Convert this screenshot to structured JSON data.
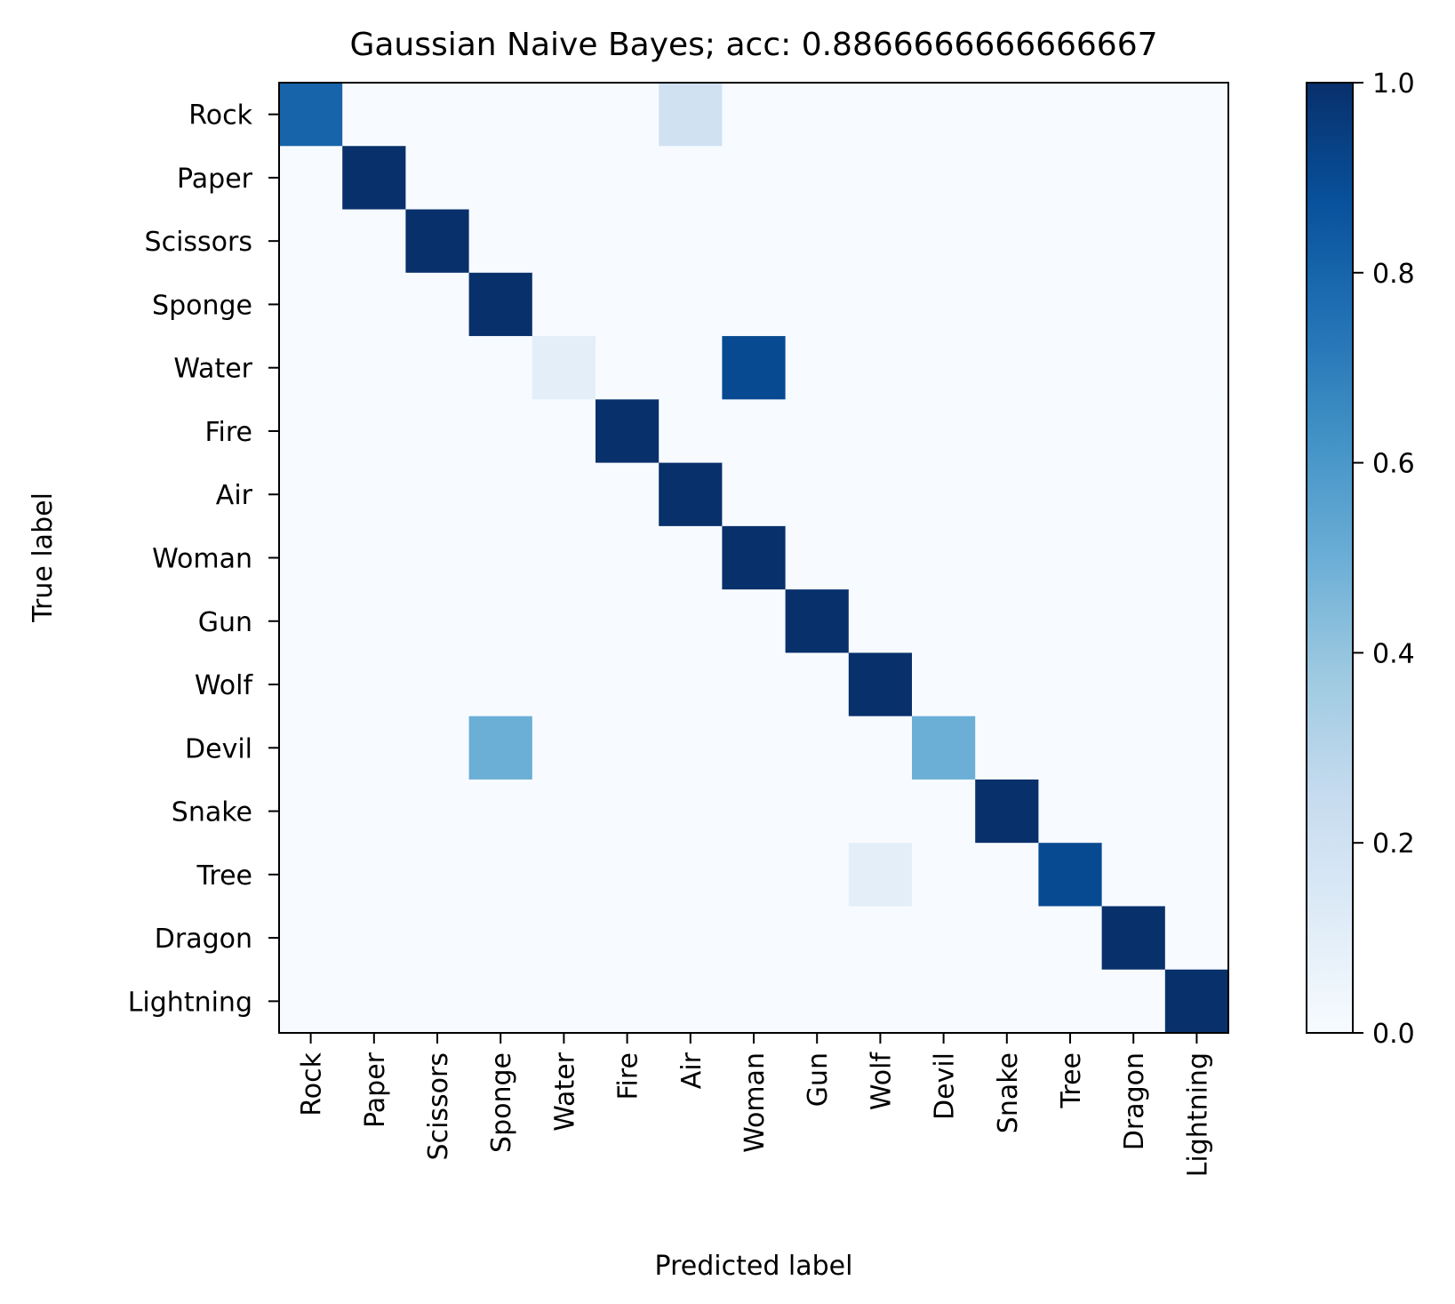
{
  "chart_data": {
    "type": "heatmap",
    "title": "Gaussian Naive Bayes; acc: 0.8866666666666667",
    "xlabel": "Predicted label",
    "ylabel": "True label",
    "x_categories": [
      "Rock",
      "Paper",
      "Scissors",
      "Sponge",
      "Water",
      "Fire",
      "Air",
      "Woman",
      "Gun",
      "Wolf",
      "Devil",
      "Snake",
      "Tree",
      "Dragon",
      "Lightning"
    ],
    "y_categories": [
      "Rock",
      "Paper",
      "Scissors",
      "Sponge",
      "Water",
      "Fire",
      "Air",
      "Woman",
      "Gun",
      "Wolf",
      "Devil",
      "Snake",
      "Tree",
      "Dragon",
      "Lightning"
    ],
    "values": [
      [
        0.8,
        0,
        0,
        0,
        0,
        0,
        0.2,
        0,
        0,
        0,
        0,
        0,
        0,
        0,
        0
      ],
      [
        0,
        1,
        0,
        0,
        0,
        0,
        0,
        0,
        0,
        0,
        0,
        0,
        0,
        0,
        0
      ],
      [
        0,
        0,
        1,
        0,
        0,
        0,
        0,
        0,
        0,
        0,
        0,
        0,
        0,
        0,
        0
      ],
      [
        0,
        0,
        0,
        1,
        0,
        0,
        0,
        0,
        0,
        0,
        0,
        0,
        0,
        0,
        0
      ],
      [
        0,
        0,
        0,
        0,
        0.1,
        0,
        0,
        0.9,
        0,
        0,
        0,
        0,
        0,
        0,
        0
      ],
      [
        0,
        0,
        0,
        0,
        0,
        1,
        0,
        0,
        0,
        0,
        0,
        0,
        0,
        0,
        0
      ],
      [
        0,
        0,
        0,
        0,
        0,
        0,
        1,
        0,
        0,
        0,
        0,
        0,
        0,
        0,
        0
      ],
      [
        0,
        0,
        0,
        0,
        0,
        0,
        0,
        1,
        0,
        0,
        0,
        0,
        0,
        0,
        0
      ],
      [
        0,
        0,
        0,
        0,
        0,
        0,
        0,
        0,
        1,
        0,
        0,
        0,
        0,
        0,
        0
      ],
      [
        0,
        0,
        0,
        0,
        0,
        0,
        0,
        0,
        0,
        1,
        0,
        0,
        0,
        0,
        0
      ],
      [
        0,
        0,
        0,
        0.5,
        0,
        0,
        0,
        0,
        0,
        0,
        0.5,
        0,
        0,
        0,
        0
      ],
      [
        0,
        0,
        0,
        0,
        0,
        0,
        0,
        0,
        0,
        0,
        0,
        1,
        0,
        0,
        0
      ],
      [
        0,
        0,
        0,
        0,
        0,
        0,
        0,
        0,
        0,
        0.1,
        0,
        0,
        0.9,
        0,
        0
      ],
      [
        0,
        0,
        0,
        0,
        0,
        0,
        0,
        0,
        0,
        0,
        0,
        0,
        0,
        1,
        0
      ],
      [
        0,
        0,
        0,
        0,
        0,
        0,
        0,
        0,
        0,
        0,
        0,
        0,
        0,
        0,
        1
      ]
    ],
    "colormap": "Blues",
    "colorbar": {
      "range": [
        0.0,
        1.0
      ],
      "ticks": [
        0.0,
        0.2,
        0.4,
        0.6,
        0.8,
        1.0
      ],
      "tick_labels": [
        "0.0",
        "0.2",
        "0.4",
        "0.6",
        "0.8",
        "1.0"
      ]
    },
    "grid": false
  }
}
